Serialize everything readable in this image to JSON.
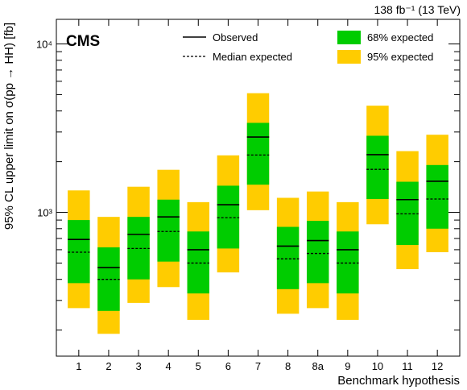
{
  "chart_data": {
    "type": "band-limit",
    "experiment_label": "CMS",
    "lumi_label": "138 fb⁻¹ (13 TeV)",
    "xlabel": "Benchmark hypothesis",
    "ylabel": "95% CL upper limit on σ(pp → HH) [fb]",
    "yscale": "log",
    "ylim": [
      140,
      14000
    ],
    "ytick_labels": [
      "10³",
      "10⁴"
    ],
    "ytick_values": [
      1000,
      10000
    ],
    "legend": {
      "observed": "Observed",
      "median": "Median expected",
      "band68": "68% expected",
      "band95": "95% expected"
    },
    "colors": {
      "band68": "#00cc00",
      "band95": "#ffcc00",
      "lines": "#000000"
    },
    "categories": [
      "1",
      "2",
      "3",
      "4",
      "5",
      "6",
      "7",
      "8",
      "8a",
      "9",
      "10",
      "11",
      "12"
    ],
    "observed": [
      690,
      470,
      740,
      940,
      600,
      1110,
      2800,
      630,
      680,
      600,
      2200,
      1190,
      1530
    ],
    "median_expected": [
      580,
      400,
      610,
      770,
      500,
      930,
      2190,
      530,
      570,
      500,
      1800,
      980,
      1200
    ],
    "band68_low": [
      380,
      260,
      400,
      510,
      330,
      610,
      1460,
      350,
      380,
      330,
      1200,
      640,
      800
    ],
    "band68_high": [
      900,
      620,
      940,
      1190,
      770,
      1440,
      3400,
      820,
      890,
      770,
      2850,
      1520,
      1910
    ],
    "band95_low": [
      270,
      190,
      290,
      360,
      230,
      440,
      1030,
      250,
      270,
      230,
      850,
      460,
      580
    ],
    "band95_high": [
      1350,
      940,
      1420,
      1790,
      1150,
      2180,
      5100,
      1220,
      1330,
      1150,
      4300,
      2310,
      2890
    ]
  }
}
